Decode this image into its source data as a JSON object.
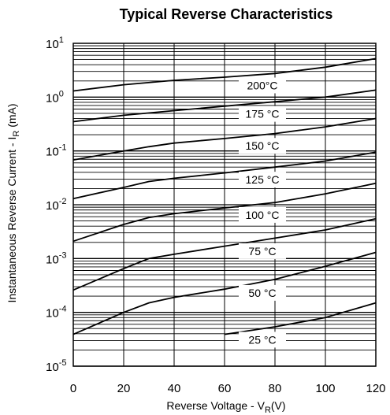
{
  "chart_data": {
    "type": "line",
    "title": "Typical Reverse Characteristics",
    "xlabel": "Reverse Voltage - V",
    "xlabel_sub": "R",
    "xlabel_unit": "(V)",
    "ylabel": "Instantaneous Reverse Current - I",
    "ylabel_sub": "R",
    "ylabel_unit": "(mA)",
    "xlim": [
      0,
      120
    ],
    "ylim": [
      1e-05,
      10
    ],
    "yscale": "log",
    "grid": true,
    "x_ticks": [
      "0",
      "20",
      "40",
      "60",
      "80",
      "100",
      "120"
    ],
    "y_ticks": [
      {
        "base": "10",
        "exp": "1"
      },
      {
        "base": "10",
        "exp": "0"
      },
      {
        "base": "10",
        "exp": "-1"
      },
      {
        "base": "10",
        "exp": "-2"
      },
      {
        "base": "10",
        "exp": "-3"
      },
      {
        "base": "10",
        "exp": "-4"
      },
      {
        "base": "10",
        "exp": "-5"
      }
    ],
    "series": [
      {
        "name": "200°C",
        "x": [
          0,
          20,
          40,
          60,
          80,
          100,
          120
        ],
        "y": [
          1.3,
          1.7,
          2.05,
          2.35,
          2.75,
          3.6,
          5.2
        ]
      },
      {
        "name": "175 °C",
        "x": [
          0,
          20,
          40,
          60,
          80,
          100,
          120
        ],
        "y": [
          0.35,
          0.46,
          0.56,
          0.68,
          0.82,
          1.0,
          1.35
        ]
      },
      {
        "name": "150 °C",
        "x": [
          0,
          20,
          30,
          40,
          60,
          80,
          100,
          120
        ],
        "y": [
          0.068,
          0.1,
          0.12,
          0.14,
          0.17,
          0.21,
          0.28,
          0.4
        ]
      },
      {
        "name": "125 °C",
        "x": [
          0,
          20,
          30,
          40,
          60,
          80,
          100,
          120
        ],
        "y": [
          0.013,
          0.021,
          0.027,
          0.031,
          0.039,
          0.05,
          0.065,
          0.095
        ]
      },
      {
        "name": "100 °C",
        "x": [
          0,
          20,
          30,
          40,
          60,
          80,
          100,
          120
        ],
        "y": [
          0.0021,
          0.0043,
          0.0058,
          0.0068,
          0.0087,
          0.011,
          0.016,
          0.025
        ]
      },
      {
        "name": "75 °C",
        "x": [
          0,
          20,
          30,
          40,
          60,
          80,
          100,
          120
        ],
        "y": [
          0.00026,
          0.00065,
          0.001,
          0.0012,
          0.0017,
          0.0024,
          0.0034,
          0.0055
        ]
      },
      {
        "name": "50 °C",
        "x": [
          0,
          20,
          30,
          40,
          60,
          80,
          100,
          120
        ],
        "y": [
          3.9e-05,
          0.0001,
          0.00015,
          0.00019,
          0.00027,
          0.00041,
          0.00072,
          0.0013
        ]
      },
      {
        "name": "25 °C",
        "x": [
          60,
          80,
          100,
          120
        ],
        "y": [
          3.9e-05,
          5.4e-05,
          8e-05,
          0.00015
        ]
      }
    ]
  }
}
